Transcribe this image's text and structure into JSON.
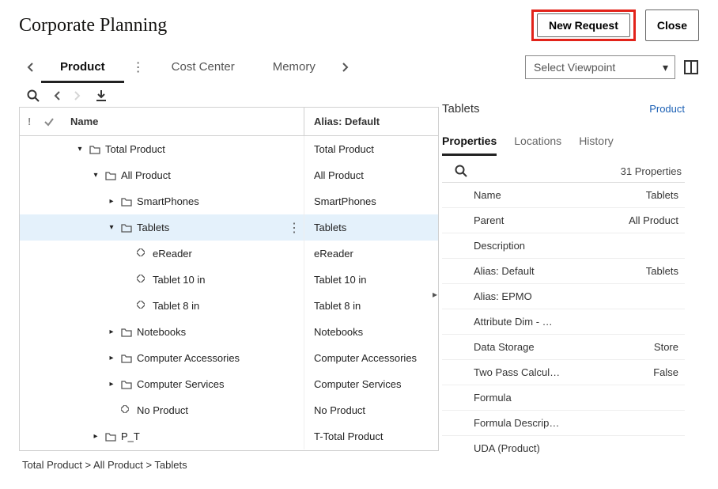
{
  "header": {
    "title": "Corporate Planning",
    "new_request": "New Request",
    "close": "Close"
  },
  "tabs": {
    "items": [
      "Product",
      "Cost Center",
      "Memory"
    ],
    "active_index": 0
  },
  "viewpoint": {
    "placeholder": "Select Viewpoint"
  },
  "tree": {
    "columns": {
      "name": "Name",
      "alias": "Alias: Default"
    },
    "rows": [
      {
        "indent": 0,
        "expander": "▾",
        "icon": "folder",
        "label": "Total Product",
        "alias": "Total Product",
        "selected": false
      },
      {
        "indent": 1,
        "expander": "▾",
        "icon": "folder",
        "label": "All Product",
        "alias": "All Product",
        "selected": false
      },
      {
        "indent": 2,
        "expander": "▸",
        "icon": "folder",
        "label": "SmartPhones",
        "alias": "SmartPhones",
        "selected": false
      },
      {
        "indent": 2,
        "expander": "▾",
        "icon": "folder",
        "label": "Tablets",
        "alias": "Tablets",
        "selected": true,
        "kebab": true
      },
      {
        "indent": 3,
        "expander": "",
        "icon": "diamond",
        "label": "eReader",
        "alias": "eReader",
        "selected": false
      },
      {
        "indent": 3,
        "expander": "",
        "icon": "diamond",
        "label": "Tablet 10 in",
        "alias": "Tablet 10 in",
        "selected": false
      },
      {
        "indent": 3,
        "expander": "",
        "icon": "diamond",
        "label": "Tablet 8 in",
        "alias": "Tablet 8 in",
        "selected": false
      },
      {
        "indent": 2,
        "expander": "▸",
        "icon": "folder",
        "label": "Notebooks",
        "alias": "Notebooks",
        "selected": false
      },
      {
        "indent": 2,
        "expander": "▸",
        "icon": "folder",
        "label": "Computer Accessories",
        "alias": "Computer Accessories",
        "selected": false
      },
      {
        "indent": 2,
        "expander": "▸",
        "icon": "folder",
        "label": "Computer Services",
        "alias": "Computer Services",
        "selected": false
      },
      {
        "indent": 2,
        "expander": "",
        "icon": "diamond",
        "label": "No Product",
        "alias": "No Product",
        "selected": false
      },
      {
        "indent": 1,
        "expander": "▸",
        "icon": "folder",
        "label": "P_T",
        "alias": "T-Total Product",
        "selected": false
      }
    ],
    "breadcrumb": "Total Product > All Product > Tablets"
  },
  "details": {
    "title": "Tablets",
    "link": "Product",
    "sub_tabs": [
      "Properties",
      "Locations",
      "History"
    ],
    "active_sub": 0,
    "count": "31 Properties",
    "properties": [
      {
        "key": "Name",
        "value": "Tablets"
      },
      {
        "key": "Parent",
        "value": "All Product"
      },
      {
        "key": "Description",
        "value": ""
      },
      {
        "key": "Alias: Default",
        "value": "Tablets"
      },
      {
        "key": "Alias: EPMO",
        "value": ""
      },
      {
        "key": "Attribute Dim - …",
        "value": ""
      },
      {
        "key": "Data Storage",
        "value": "Store"
      },
      {
        "key": "Two Pass Calcul…",
        "value": "False"
      },
      {
        "key": "Formula",
        "value": ""
      },
      {
        "key": "Formula Descrip…",
        "value": ""
      },
      {
        "key": "UDA (Product)",
        "value": ""
      }
    ]
  },
  "colors": {
    "highlight": "#e2231a",
    "selected_row": "#e4f1fb",
    "link": "#1a5fb4"
  }
}
